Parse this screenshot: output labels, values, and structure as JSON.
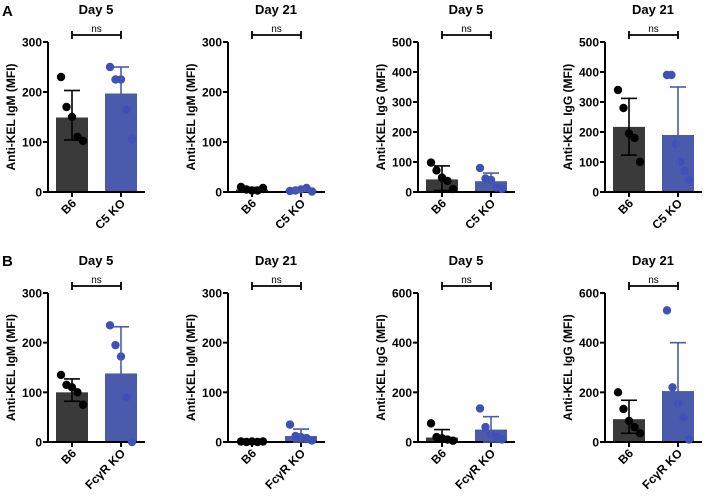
{
  "panel_labels": [
    "A",
    "B"
  ],
  "colors": {
    "B6": "#3a3a3a",
    "KO": "#4a5aad",
    "B6_dot": "#000000",
    "KO_dot": "#3f51b5"
  },
  "chart_data": [
    {
      "type": "bar",
      "row": "A",
      "title": "Day 5",
      "ylabel": "Anti-KEL IgM (MFI)",
      "ylim": [
        0,
        300
      ],
      "yticks": [
        0,
        100,
        200,
        300
      ],
      "categories": [
        "B6",
        "C5 KO"
      ],
      "means": [
        149,
        197
      ],
      "err_low": [
        104,
        144
      ],
      "err_high": [
        203,
        250
      ],
      "points": [
        [
          230,
          170,
          150,
          110,
          102
        ],
        [
          250,
          225,
          225,
          165,
          105
        ]
      ],
      "annotation": "ns"
    },
    {
      "type": "bar",
      "row": "A",
      "title": "Day 21",
      "ylabel": "Anti-KEL IgM (MFI)",
      "ylim": [
        0,
        300
      ],
      "yticks": [
        0,
        100,
        200,
        300
      ],
      "categories": [
        "B6",
        "C5 KO"
      ],
      "means": [
        5,
        3
      ],
      "err_low": [
        2,
        1
      ],
      "err_high": [
        9,
        6
      ],
      "points": [
        [
          10,
          5,
          3,
          3,
          8
        ],
        [
          2,
          3,
          5,
          8,
          1
        ]
      ],
      "annotation": "ns"
    },
    {
      "type": "bar",
      "row": "A",
      "title": "Day 5",
      "ylabel": "Anti-KEL IgG (MFI)",
      "ylim": [
        0,
        500
      ],
      "yticks": [
        0,
        100,
        200,
        300,
        400,
        500
      ],
      "categories": [
        "B6",
        "C5 KO"
      ],
      "means": [
        42,
        36
      ],
      "err_low": [
        5,
        10
      ],
      "err_high": [
        87,
        63
      ],
      "points": [
        [
          98,
          72,
          48,
          37,
          10
        ],
        [
          80,
          45,
          40,
          15,
          10
        ]
      ],
      "annotation": "ns"
    },
    {
      "type": "bar",
      "row": "A",
      "title": "Day 21",
      "ylabel": "Anti-KEL IgG (MFI)",
      "ylim": [
        0,
        500
      ],
      "yticks": [
        0,
        100,
        200,
        300,
        400,
        500
      ],
      "categories": [
        "B6",
        "C5 KO"
      ],
      "means": [
        217,
        190
      ],
      "err_low": [
        123,
        30
      ],
      "err_high": [
        312,
        350
      ],
      "points": [
        [
          340,
          280,
          195,
          180,
          100
        ],
        [
          390,
          390,
          160,
          100,
          70,
          40
        ]
      ],
      "annotation": "ns"
    },
    {
      "type": "bar",
      "row": "B",
      "title": "Day 5",
      "ylabel": "Anti-KEL IgM (MFI)",
      "ylim": [
        0,
        300
      ],
      "yticks": [
        0,
        100,
        200,
        300
      ],
      "categories": [
        "B6",
        "FcγR KO"
      ],
      "means": [
        100,
        138
      ],
      "err_low": [
        82,
        44
      ],
      "err_high": [
        127,
        232
      ],
      "points": [
        [
          135,
          115,
          110,
          100,
          75
        ],
        [
          235,
          195,
          172,
          90,
          0
        ]
      ],
      "annotation": "ns"
    },
    {
      "type": "bar",
      "row": "B",
      "title": "Day 21",
      "ylabel": "Anti-KEL IgM (MFI)",
      "ylim": [
        0,
        300
      ],
      "yticks": [
        0,
        100,
        200,
        300
      ],
      "categories": [
        "B6",
        "FcγR KO"
      ],
      "means": [
        1,
        12
      ],
      "err_low": [
        0,
        0
      ],
      "err_high": [
        2,
        26
      ],
      "points": [
        [
          1,
          0,
          1,
          0,
          1
        ],
        [
          35,
          12,
          10,
          8,
          3
        ]
      ],
      "annotation": "ns"
    },
    {
      "type": "bar",
      "row": "B",
      "title": "Day 5",
      "ylabel": "Anti-KEL IgG (MFI)",
      "ylim": [
        0,
        600
      ],
      "yticks": [
        0,
        200,
        400,
        600
      ],
      "categories": [
        "B6",
        "FcγR KO"
      ],
      "means": [
        18,
        50
      ],
      "err_low": [
        0,
        0
      ],
      "err_high": [
        50,
        102
      ],
      "points": [
        [
          75,
          20,
          15,
          10,
          5
        ],
        [
          135,
          60,
          30,
          20,
          10
        ]
      ],
      "annotation": "ns"
    },
    {
      "type": "bar",
      "row": "B",
      "title": "Day 21",
      "ylabel": "Anti-KEL IgG (MFI)",
      "ylim": [
        0,
        600
      ],
      "yticks": [
        0,
        200,
        400,
        600
      ],
      "categories": [
        "B6",
        "FcγR KO"
      ],
      "means": [
        92,
        205
      ],
      "err_low": [
        35,
        10
      ],
      "err_high": [
        168,
        400
      ],
      "points": [
        [
          200,
          133,
          85,
          60,
          35
        ],
        [
          530,
          220,
          155,
          100,
          10
        ]
      ],
      "annotation": "ns"
    }
  ]
}
